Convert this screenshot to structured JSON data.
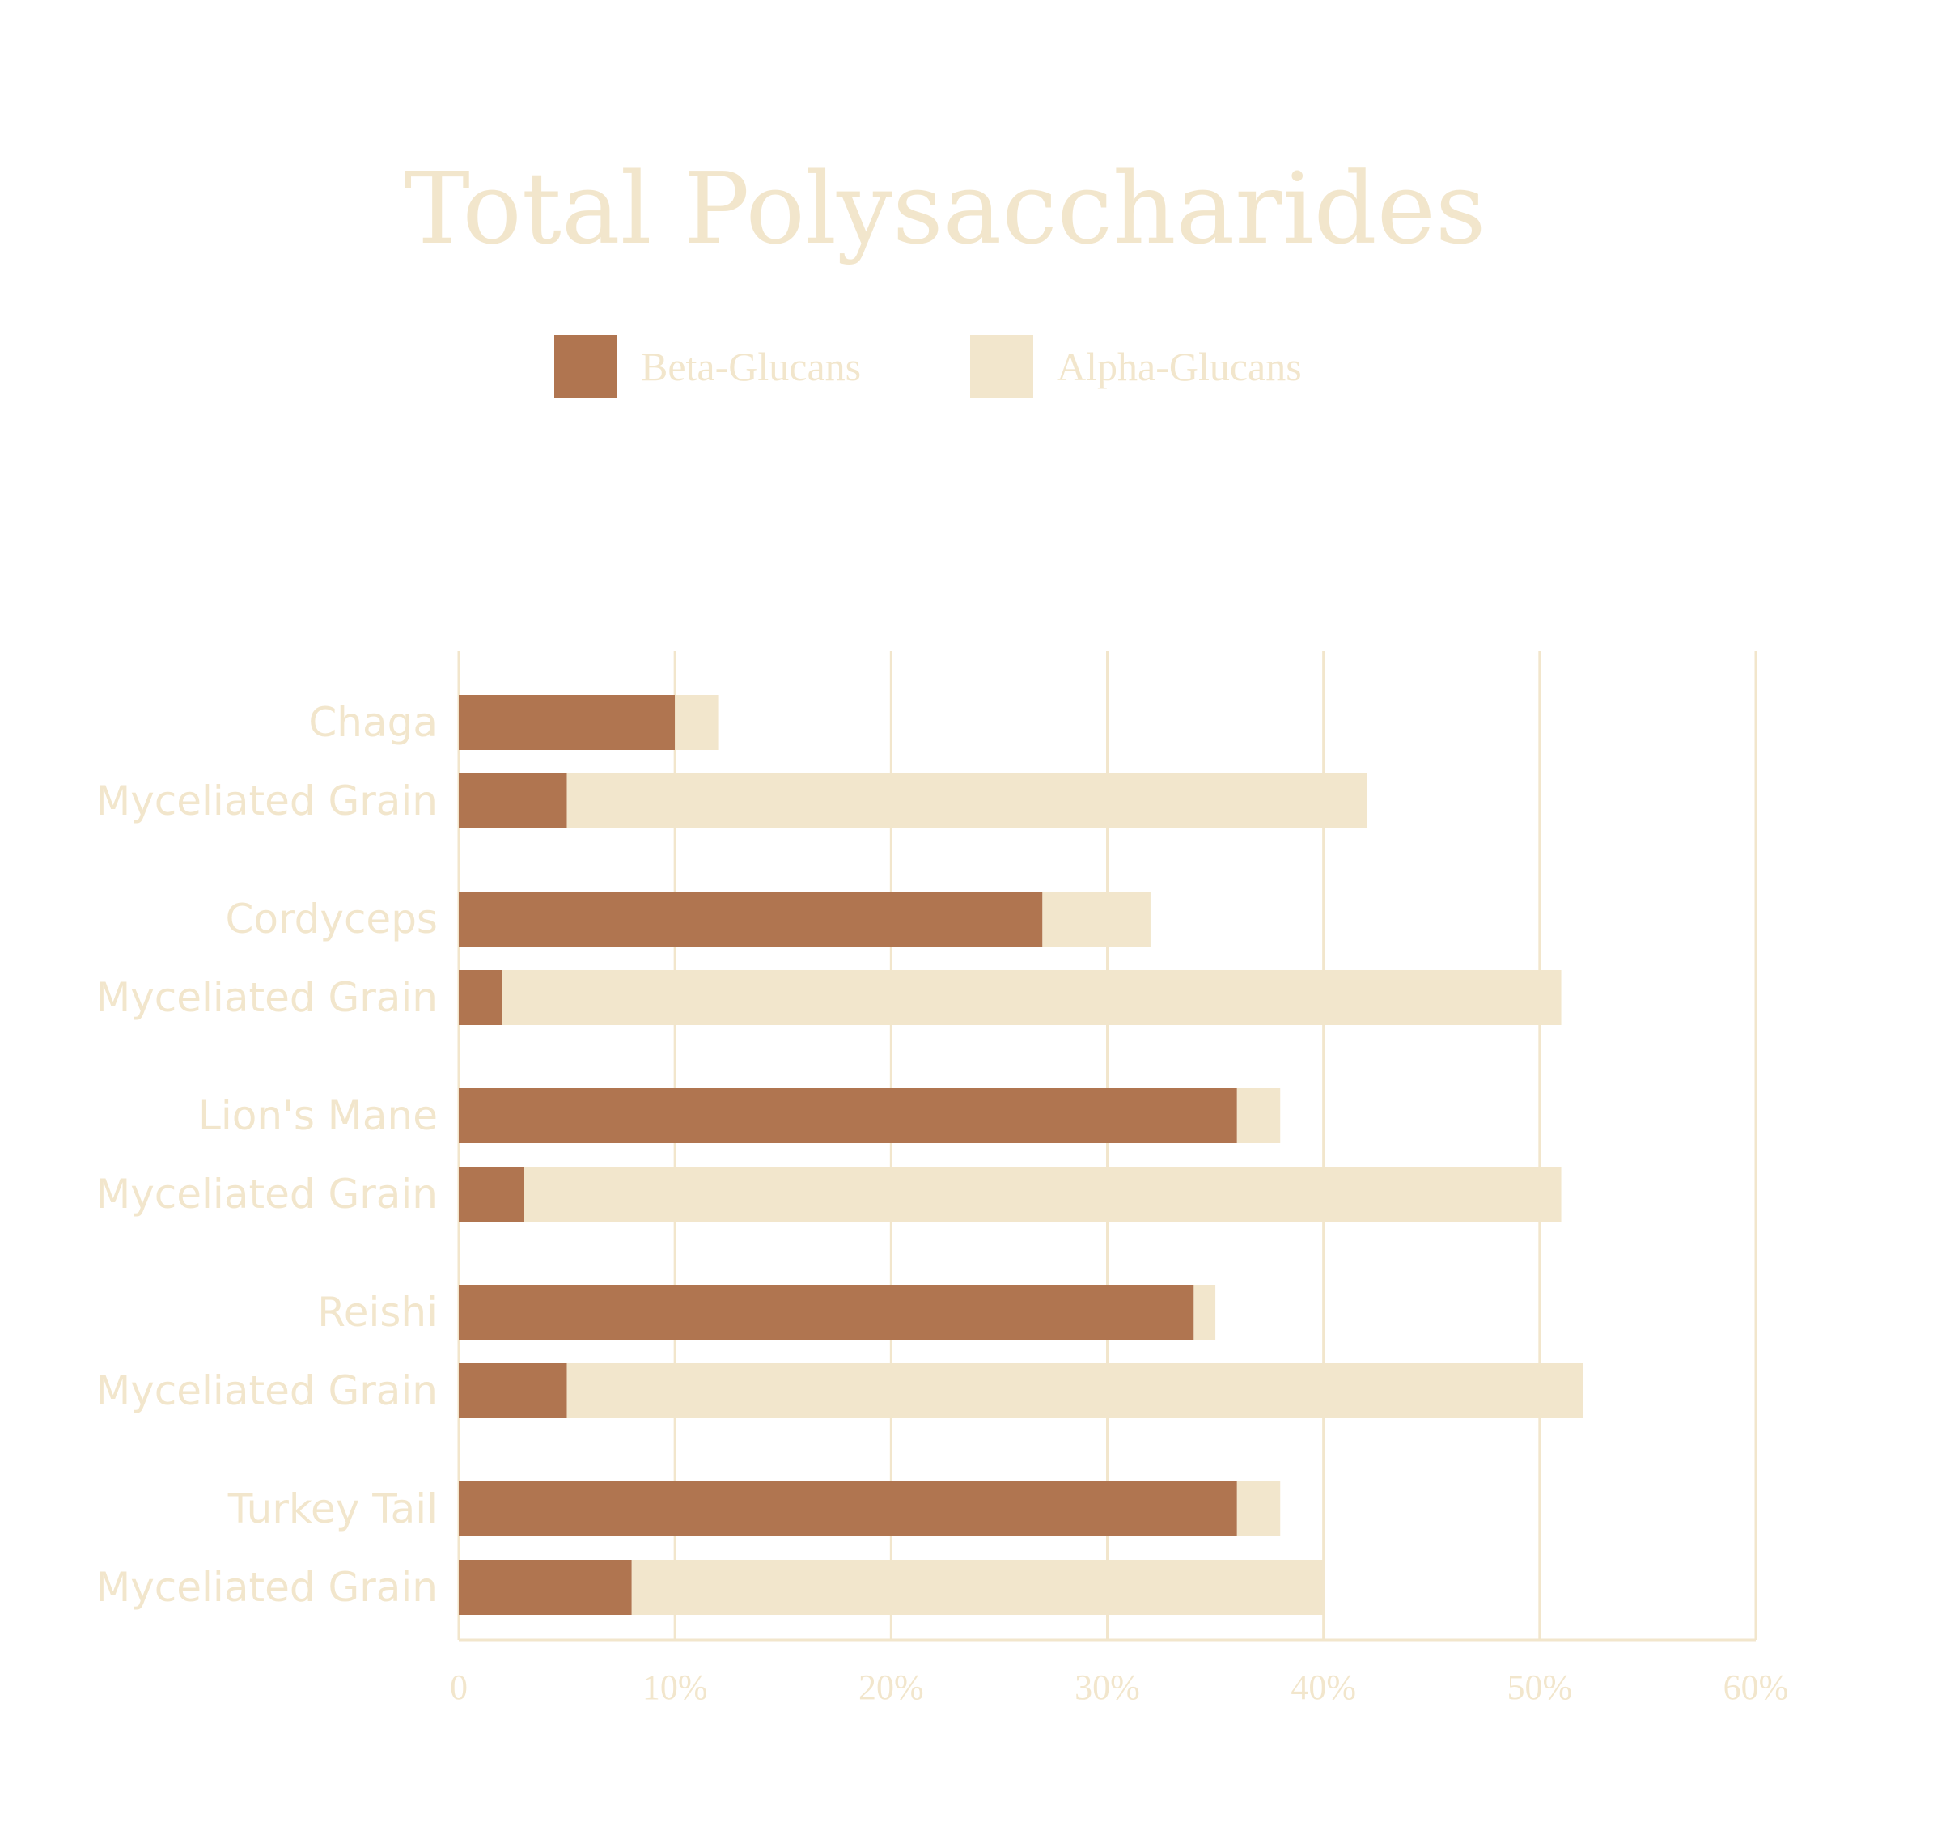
{
  "chart_data": {
    "type": "bar",
    "orientation": "horizontal",
    "stacked": true,
    "title": "Total Polysaccharides",
    "categories": [
      "Chaga",
      "Myceliated Grain",
      "Cordyceps",
      "Myceliated Grain",
      "Lion's Mane",
      "Myceliated Grain",
      "Reishi",
      "Myceliated Grain",
      "Turkey Tail",
      "Myceliated Grain"
    ],
    "series": [
      {
        "name": "Beta-Glucans",
        "color": "#b07550",
        "values": [
          10,
          5,
          27,
          2,
          36,
          3,
          34,
          5,
          36,
          8
        ]
      },
      {
        "name": "Alpha-Glucans",
        "color": "#f2e6cc",
        "values": [
          2,
          37,
          5,
          49,
          2,
          48,
          1,
          47,
          2,
          32
        ]
      }
    ],
    "xlim": [
      0,
      60
    ],
    "xticks": [
      0,
      10,
      20,
      30,
      40,
      50,
      60
    ],
    "xtick_labels": [
      "0",
      "10%",
      "20%",
      "30%",
      "40%",
      "50%",
      "60%"
    ],
    "grid": true,
    "grid_axis": "x",
    "legend_position": "top-center",
    "text_color": "#f2e6cc",
    "grid_color": "#f2e6cc"
  }
}
